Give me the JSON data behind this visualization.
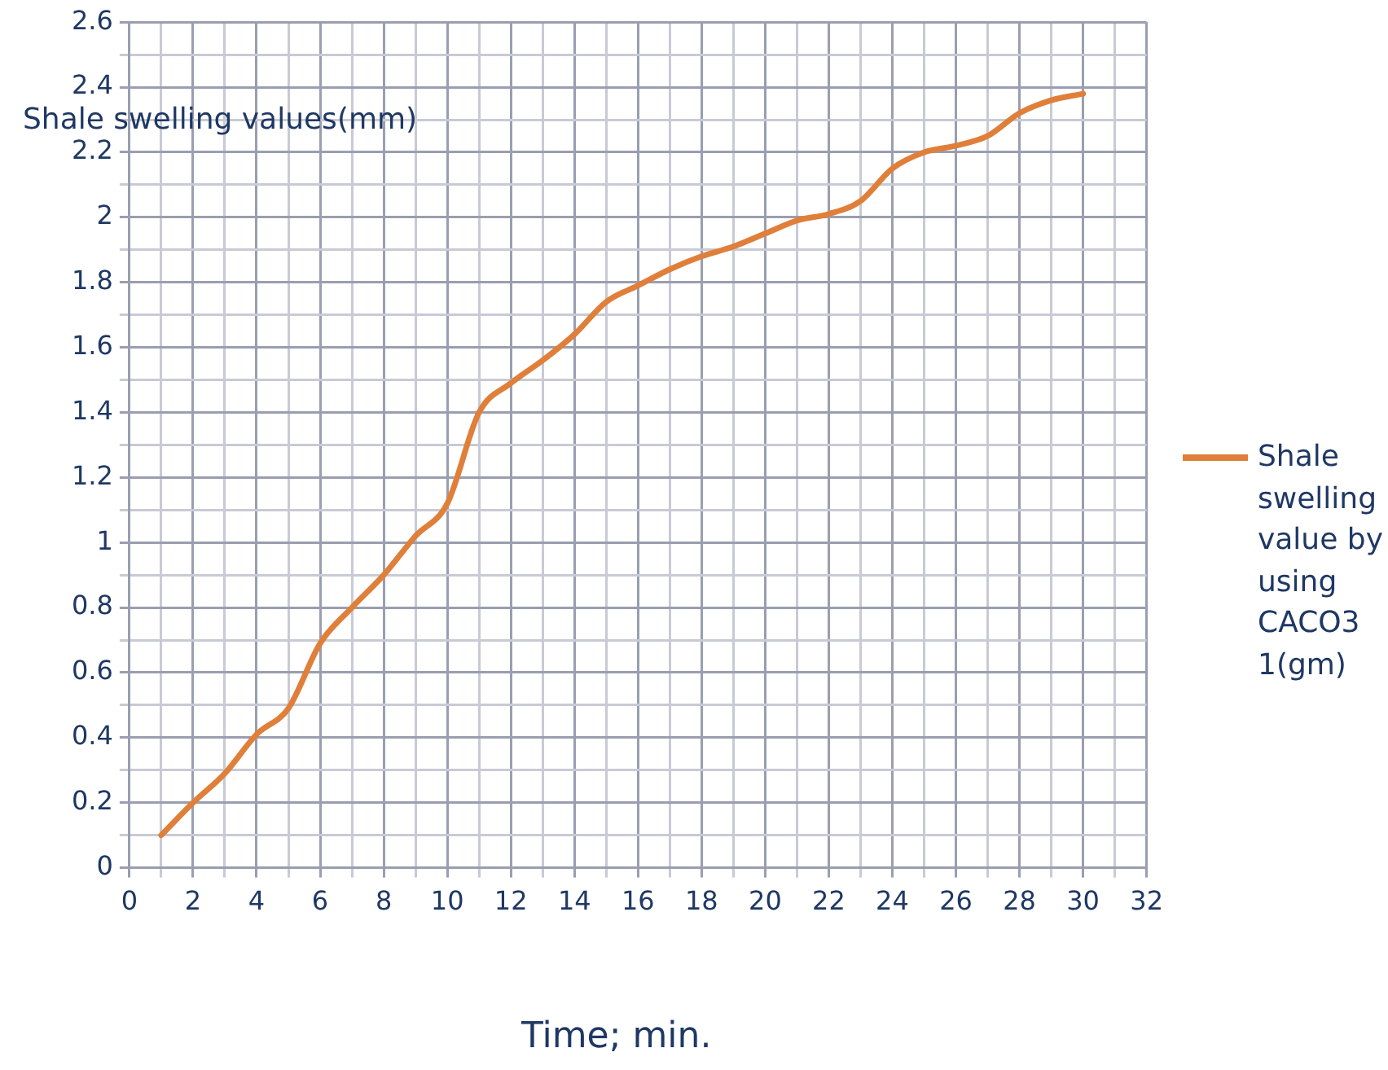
{
  "chart_data": {
    "type": "line",
    "xlabel": "Time; min.",
    "ylabel": "Shale swelling values(mm)",
    "x": [
      1,
      2,
      3,
      4,
      5,
      6,
      7,
      8,
      9,
      10,
      11,
      12,
      13,
      14,
      15,
      16,
      17,
      18,
      19,
      20,
      21,
      22,
      23,
      24,
      25,
      26,
      27,
      28,
      29,
      30
    ],
    "series": [
      {
        "name": "Shale swelling value by using CACO3 1(gm)",
        "color": "#e07f3a",
        "values": [
          0.1,
          0.2,
          0.29,
          0.41,
          0.49,
          0.69,
          0.8,
          0.9,
          1.02,
          1.12,
          1.4,
          1.49,
          1.56,
          1.64,
          1.74,
          1.79,
          1.84,
          1.88,
          1.91,
          1.95,
          1.99,
          2.01,
          2.05,
          2.15,
          2.2,
          2.22,
          2.25,
          2.32,
          2.36,
          2.38
        ]
      }
    ],
    "xlim": [
      0,
      32
    ],
    "xticks": [
      0,
      {
        "value": 1,
        "label": null
      },
      2,
      {
        "value": 3,
        "label": null
      },
      4,
      {
        "value": 5,
        "label": null
      },
      6,
      {
        "value": 7,
        "label": null
      },
      8,
      {
        "value": 9,
        "label": null
      },
      10,
      {
        "value": 11,
        "label": null
      },
      12,
      {
        "value": 13,
        "label": null
      },
      14,
      {
        "value": 15,
        "label": null
      },
      16,
      {
        "value": 17,
        "label": null
      },
      18,
      {
        "value": 19,
        "label": null
      },
      20,
      {
        "value": 21,
        "label": null
      },
      22,
      {
        "value": 23,
        "label": null
      },
      24,
      {
        "value": 25,
        "label": null
      },
      26,
      {
        "value": 27,
        "label": null
      },
      28,
      {
        "value": 29,
        "label": null
      },
      30,
      {
        "value": 31,
        "label": null
      },
      32
    ],
    "ylim": [
      0,
      2.6
    ],
    "yticks": [
      0,
      {
        "value": 0.1,
        "label": null
      },
      0.2,
      {
        "value": 0.3,
        "label": null
      },
      0.4,
      {
        "value": 0.5,
        "label": null
      },
      0.6,
      {
        "value": 0.7,
        "label": null
      },
      0.8,
      {
        "value": 0.9,
        "label": null
      },
      1,
      {
        "value": 1.1,
        "label": null
      },
      1.2,
      {
        "value": 1.3,
        "label": null
      },
      1.4,
      {
        "value": 1.5,
        "label": null
      },
      1.6,
      {
        "value": 1.7,
        "label": null
      },
      1.8,
      {
        "value": 1.9,
        "label": null
      },
      2,
      {
        "value": 2.1,
        "label": null
      },
      2.2,
      {
        "value": 2.3,
        "label": null
      },
      2.4,
      {
        "value": 2.5,
        "label": null
      },
      2.6
    ],
    "grid": true,
    "legend": "right",
    "marker": "none",
    "line_style": "solid"
  }
}
